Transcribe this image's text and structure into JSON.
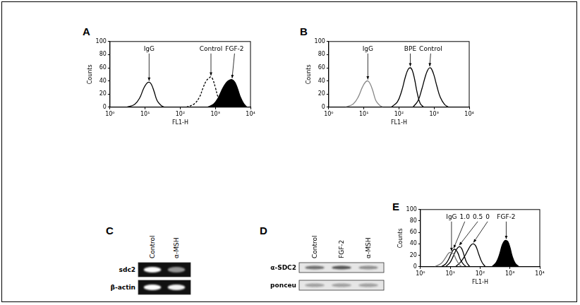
{
  "chart_data": [
    {
      "type": "line",
      "title": "A",
      "x_label": "FL1-H",
      "y_label": "Counts",
      "log": "x",
      "grid": false,
      "xlim": [
        1,
        10000
      ],
      "xticks": [
        {
          "value": 1,
          "label": "10⁰"
        },
        {
          "value": 10,
          "label": "10¹"
        },
        {
          "value": 100,
          "label": "10²"
        },
        {
          "value": 1000,
          "label": "10³"
        },
        {
          "value": 10000,
          "label": "10⁴"
        }
      ],
      "ylim": [
        0,
        100
      ],
      "yticks": [
        0,
        20,
        40,
        60,
        80,
        100
      ],
      "series": [
        {
          "name": "IgG",
          "color": "#000000",
          "line_style": "solid",
          "x": [
            3,
            5,
            7,
            9,
            11,
            13,
            15,
            18,
            22,
            28,
            35
          ],
          "values": [
            0,
            4,
            14,
            28,
            36,
            38,
            35,
            24,
            10,
            3,
            0
          ]
        },
        {
          "name": "Control",
          "color": "#000000",
          "line_style": "dashed",
          "x": [
            150,
            250,
            350,
            450,
            550,
            650,
            750,
            850,
            1000,
            1200,
            1500,
            2000
          ],
          "values": [
            0,
            5,
            15,
            30,
            40,
            44,
            46,
            42,
            30,
            15,
            5,
            0
          ]
        },
        {
          "name": "FGF-2",
          "color": "#000000",
          "type": "area",
          "x": [
            600,
            900,
            1200,
            1500,
            1800,
            2100,
            2500,
            3000,
            3600,
            4300,
            5200,
            6500,
            8000
          ],
          "values": [
            0,
            5,
            14,
            25,
            33,
            38,
            41,
            42,
            38,
            28,
            15,
            5,
            0
          ]
        }
      ]
    },
    {
      "type": "line",
      "title": "B",
      "x_label": "FL1-H",
      "y_label": "Counts",
      "log": "x",
      "grid": false,
      "xlim": [
        1,
        10000
      ],
      "xticks": [
        {
          "value": 1,
          "label": "10⁰"
        },
        {
          "value": 10,
          "label": "10¹"
        },
        {
          "value": 100,
          "label": "10²"
        },
        {
          "value": 1000,
          "label": "10³"
        },
        {
          "value": 10000,
          "label": "10⁴"
        }
      ],
      "ylim": [
        0,
        100
      ],
      "yticks": [
        0,
        20,
        40,
        60,
        80,
        100
      ],
      "series": [
        {
          "name": "IgG",
          "color": "#888888",
          "line_style": "solid",
          "x": [
            3,
            5,
            7,
            9,
            11,
            13,
            15,
            18,
            22,
            28,
            35
          ],
          "values": [
            0,
            5,
            16,
            30,
            38,
            40,
            36,
            25,
            10,
            3,
            0
          ]
        },
        {
          "name": "BPE",
          "color": "#000000",
          "line_style": "solid",
          "x": [
            60,
            90,
            120,
            150,
            180,
            210,
            240,
            280,
            330,
            400,
            500
          ],
          "values": [
            0,
            8,
            25,
            45,
            57,
            60,
            56,
            42,
            22,
            6,
            0
          ]
        },
        {
          "name": "Control",
          "color": "#000000",
          "line_style": "solid",
          "x": [
            250,
            350,
            450,
            550,
            650,
            750,
            850,
            1000,
            1200,
            1500,
            2000,
            2600
          ],
          "values": [
            0,
            10,
            28,
            45,
            56,
            60,
            58,
            48,
            32,
            15,
            4,
            0
          ]
        }
      ]
    },
    {
      "type": "line",
      "title": "E",
      "x_label": "FL1-H",
      "y_label": "Counts",
      "log": "x",
      "grid": false,
      "xlim": [
        1,
        10000
      ],
      "xticks": [
        {
          "value": 1,
          "label": "10⁰"
        },
        {
          "value": 10,
          "label": "10¹"
        },
        {
          "value": 100,
          "label": "10²"
        },
        {
          "value": 1000,
          "label": "10³"
        },
        {
          "value": 10000,
          "label": "10⁴"
        }
      ],
      "ylim": [
        0,
        100
      ],
      "yticks": [
        0,
        20,
        40,
        60,
        80,
        100
      ],
      "series": [
        {
          "name": "IgG",
          "color": "#777777",
          "line_style": "solid",
          "x": [
            3,
            5,
            7,
            9,
            11,
            13,
            16,
            20,
            25
          ],
          "values": [
            0,
            6,
            16,
            24,
            25,
            22,
            12,
            4,
            0
          ]
        },
        {
          "name": "1.0",
          "color": "#000000",
          "line_style": "solid",
          "x": [
            5,
            7,
            9,
            11,
            13,
            15,
            18,
            22,
            28,
            35
          ],
          "values": [
            0,
            5,
            14,
            24,
            30,
            30,
            24,
            12,
            4,
            0
          ]
        },
        {
          "name": "0.5",
          "color": "#000000",
          "line_style": "solid",
          "x": [
            7,
            10,
            13,
            16,
            20,
            24,
            29,
            35,
            45
          ],
          "values": [
            0,
            8,
            20,
            30,
            35,
            32,
            20,
            8,
            0
          ]
        },
        {
          "name": "0",
          "color": "#000000",
          "line_style": "solid",
          "x": [
            15,
            22,
            30,
            40,
            50,
            60,
            72,
            90,
            115,
            150
          ],
          "values": [
            0,
            8,
            18,
            30,
            38,
            40,
            36,
            22,
            8,
            0
          ]
        },
        {
          "name": "FGF-2",
          "color": "#000000",
          "type": "area",
          "x": [
            250,
            350,
            450,
            550,
            650,
            750,
            850,
            1000,
            1200,
            1500,
            2000
          ],
          "values": [
            0,
            8,
            22,
            38,
            45,
            46,
            44,
            34,
            18,
            6,
            0
          ]
        }
      ]
    }
  ],
  "blots": [
    {
      "title": "C",
      "style": "dark",
      "lanes": [
        "Control",
        "α-MSH"
      ],
      "rows": [
        {
          "label": "sdc2",
          "bands": [
            1.0,
            0.55
          ]
        },
        {
          "label": "β-actin",
          "bands": [
            1.0,
            0.95
          ]
        }
      ]
    },
    {
      "title": "D",
      "style": "light",
      "lanes": [
        "Control",
        "FGF-2",
        "α-MSH"
      ],
      "rows": [
        {
          "label": "α-SDC2",
          "bands": [
            0.6,
            0.75,
            0.45
          ]
        },
        {
          "label": "ponceu",
          "bands": [
            0.35,
            0.35,
            0.35
          ]
        }
      ]
    }
  ]
}
